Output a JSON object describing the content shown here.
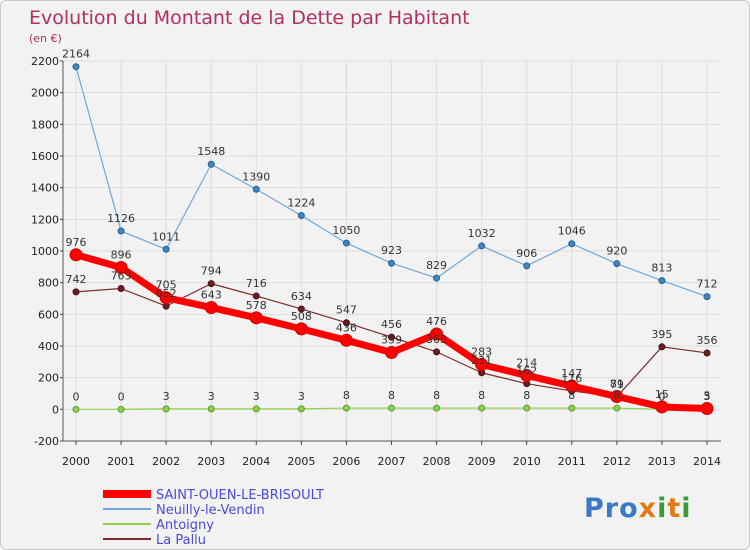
{
  "chart_data": {
    "type": "line",
    "title": "Evolution du Montant de la Dette par Habitant",
    "subtitle": "(en €)",
    "x": [
      "2000",
      "2001",
      "2002",
      "2003",
      "2004",
      "2005",
      "2006",
      "2007",
      "2008",
      "2009",
      "2010",
      "2011",
      "2012",
      "2013",
      "2014"
    ],
    "ylim": [
      -200,
      2200
    ],
    "yticks": [
      "-200",
      "0",
      "200",
      "400",
      "600",
      "800",
      "1000",
      "1200",
      "1400",
      "1600",
      "1800",
      "2000",
      "2200"
    ],
    "grid": true,
    "legend_position": "bottom-left",
    "series": [
      {
        "name": "SAINT-OUEN-LE-BRISOULT",
        "color": "#ff0000",
        "values": [
          976,
          896,
          705,
          643,
          578,
          508,
          436,
          359,
          476,
          283,
          214,
          147,
          81,
          15,
          5
        ],
        "labels": [
          "976",
          "896",
          "705",
          "643",
          "578",
          "508",
          "436",
          "359",
          "476",
          "283",
          "214",
          "147",
          "81",
          "15",
          "5"
        ]
      },
      {
        "name": "Neuilly-le-Vendin",
        "color": "#6fa8dc",
        "values": [
          2164,
          1126,
          1011,
          1548,
          1390,
          1224,
          1050,
          923,
          829,
          1032,
          906,
          1046,
          920,
          813,
          712
        ],
        "labels": [
          "2164",
          "1126",
          "1011",
          "1548",
          "1390",
          "1224",
          "1050",
          "923",
          "829",
          "1032",
          "906",
          "1046",
          "920",
          "813",
          "712"
        ]
      },
      {
        "name": "Antoigny",
        "color": "#8fd14f",
        "values": [
          0,
          0,
          3,
          3,
          3,
          3,
          8,
          8,
          8,
          8,
          8,
          8,
          8,
          0,
          3
        ],
        "labels": [
          "0",
          "0",
          "3",
          "3",
          "3",
          "3",
          "8",
          "8",
          "8",
          "8",
          "8",
          "8",
          "8",
          "0",
          "3"
        ]
      },
      {
        "name": "La Pallu",
        "color": "#7b2c2c",
        "values": [
          742,
          763,
          652,
          794,
          716,
          634,
          547,
          456,
          363,
          231,
          162,
          116,
          79,
          395,
          356
        ],
        "labels": [
          "742",
          "763",
          "652",
          "794",
          "716",
          "634",
          "547",
          "456",
          "363",
          "231",
          "162",
          "116",
          "79",
          "395",
          "356"
        ]
      }
    ]
  },
  "logo": {
    "text": "Proxiti"
  }
}
